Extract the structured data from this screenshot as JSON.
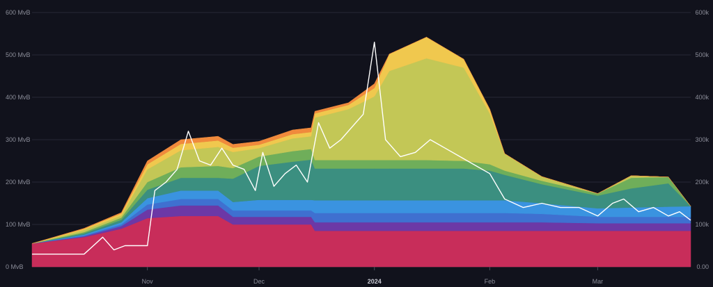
{
  "chart_data": {
    "type": "area",
    "x_range": [
      "2023-10-01",
      "2024-03-26"
    ],
    "y_left": {
      "unit": "MvB",
      "ylim": [
        0,
        600
      ],
      "ticks": [
        "0 MvB",
        "100 MvB",
        "200 MvB",
        "300 MvB",
        "400 MvB",
        "500 MvB",
        "600 MvB"
      ]
    },
    "y_right": {
      "ylim": [
        0,
        600000
      ],
      "ticks": [
        "0.00",
        "100k",
        "200k",
        "300k",
        "400k",
        "500k",
        "600k"
      ]
    },
    "x_ticks": [
      {
        "label": "Nov",
        "date": "2023-11-01",
        "bold": false
      },
      {
        "label": "Dec",
        "date": "2023-12-01",
        "bold": false
      },
      {
        "label": "2024",
        "date": "2024-01-01",
        "bold": true
      },
      {
        "label": "Feb",
        "date": "2024-02-01",
        "bold": false
      },
      {
        "label": "Mar",
        "date": "2024-03-01",
        "bold": false
      }
    ],
    "grid": true,
    "legend": "none",
    "x": [
      "2023-10-01",
      "2023-10-15",
      "2023-10-25",
      "2023-11-01",
      "2023-11-10",
      "2023-11-20",
      "2023-11-24",
      "2023-12-01",
      "2023-12-10",
      "2023-12-15",
      "2023-12-16",
      "2023-12-25",
      "2024-01-01",
      "2024-01-05",
      "2024-01-15",
      "2024-01-25",
      "2024-02-01",
      "2024-02-05",
      "2024-02-15",
      "2024-03-01",
      "2024-03-10",
      "2024-03-20",
      "2024-03-26"
    ],
    "series": [
      {
        "color": "#c82d5a",
        "values": [
          55,
          70,
          90,
          115,
          120,
          120,
          100,
          100,
          100,
          100,
          85,
          85,
          85,
          85,
          85,
          85,
          85,
          85,
          85,
          85,
          85,
          85,
          85
        ]
      },
      {
        "color": "#6c38a6",
        "values": [
          0,
          2,
          6,
          20,
          25,
          25,
          18,
          18,
          18,
          18,
          20,
          20,
          20,
          20,
          20,
          20,
          20,
          20,
          20,
          18,
          18,
          18,
          18
        ]
      },
      {
        "color": "#3f70d0",
        "values": [
          0,
          2,
          4,
          12,
          15,
          15,
          15,
          15,
          15,
          15,
          22,
          22,
          22,
          22,
          22,
          22,
          22,
          22,
          20,
          15,
          15,
          15,
          15
        ]
      },
      {
        "color": "#3a93e0",
        "values": [
          0,
          2,
          5,
          15,
          20,
          20,
          20,
          25,
          25,
          25,
          30,
          30,
          30,
          30,
          30,
          30,
          30,
          30,
          25,
          20,
          22,
          24,
          25
        ]
      },
      {
        "color": "#3b8f80",
        "values": [
          0,
          3,
          6,
          20,
          30,
          30,
          55,
          80,
          90,
          95,
          75,
          75,
          75,
          75,
          75,
          75,
          70,
          60,
          45,
          30,
          45,
          55,
          0
        ]
      },
      {
        "color": "#6fae5a",
        "values": [
          0,
          3,
          5,
          18,
          25,
          28,
          25,
          22,
          25,
          25,
          20,
          20,
          20,
          20,
          20,
          18,
          15,
          10,
          8,
          5,
          25,
          15,
          0
        ]
      },
      {
        "color": "#c3c756",
        "values": [
          0,
          5,
          5,
          30,
          40,
          45,
          38,
          20,
          30,
          30,
          100,
          120,
          150,
          210,
          240,
          220,
          120,
          40,
          10,
          0,
          5,
          0,
          0
        ]
      },
      {
        "color": "#f0c84e",
        "values": [
          0,
          3,
          5,
          12,
          15,
          15,
          10,
          8,
          10,
          10,
          10,
          10,
          20,
          40,
          50,
          20,
          10,
          0,
          0,
          0,
          0,
          0,
          0
        ]
      },
      {
        "color": "#f08a3c",
        "values": [
          0,
          1,
          2,
          8,
          10,
          10,
          8,
          8,
          10,
          10,
          5,
          5,
          10,
          0,
          0,
          0,
          0,
          0,
          0,
          0,
          0,
          0,
          0
        ]
      }
    ],
    "line_series": {
      "axis": "right",
      "color": "#ffffff",
      "x": [
        "2023-10-01",
        "2023-10-15",
        "2023-10-20",
        "2023-10-23",
        "2023-10-26",
        "2023-11-01",
        "2023-11-03",
        "2023-11-06",
        "2023-11-09",
        "2023-11-12",
        "2023-11-15",
        "2023-11-18",
        "2023-11-21",
        "2023-11-24",
        "2023-11-27",
        "2023-11-30",
        "2023-12-02",
        "2023-12-05",
        "2023-12-08",
        "2023-12-11",
        "2023-12-14",
        "2023-12-17",
        "2023-12-20",
        "2023-12-23",
        "2023-12-26",
        "2023-12-29",
        "2024-01-01",
        "2024-01-04",
        "2024-01-08",
        "2024-01-12",
        "2024-01-16",
        "2024-01-20",
        "2024-01-24",
        "2024-01-28",
        "2024-02-01",
        "2024-02-05",
        "2024-02-10",
        "2024-02-15",
        "2024-02-20",
        "2024-02-25",
        "2024-03-01",
        "2024-03-05",
        "2024-03-08",
        "2024-03-12",
        "2024-03-16",
        "2024-03-20",
        "2024-03-23",
        "2024-03-26"
      ],
      "values": [
        30000,
        30000,
        70000,
        40000,
        50000,
        50000,
        180000,
        200000,
        230000,
        320000,
        250000,
        240000,
        280000,
        240000,
        230000,
        180000,
        270000,
        190000,
        220000,
        240000,
        200000,
        340000,
        280000,
        300000,
        330000,
        360000,
        530000,
        300000,
        260000,
        270000,
        300000,
        280000,
        260000,
        240000,
        220000,
        160000,
        140000,
        150000,
        140000,
        140000,
        120000,
        150000,
        160000,
        130000,
        140000,
        120000,
        130000,
        110000
      ]
    }
  }
}
